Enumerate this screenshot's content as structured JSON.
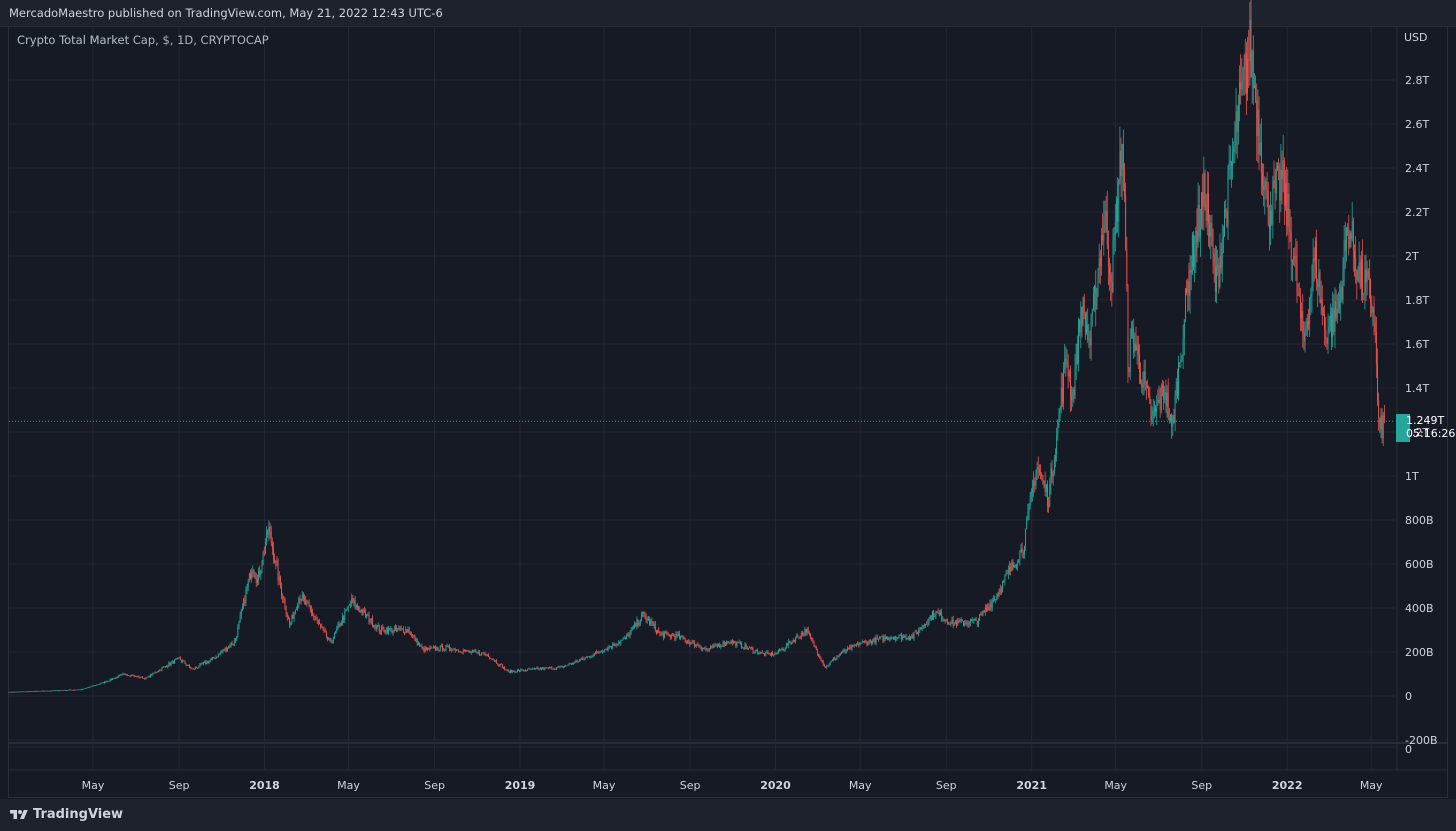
{
  "header": {
    "published_text": "MercadoMaestro published on TradingView.com, May 21, 2022 12:43 UTC-6"
  },
  "legend": {
    "symbol_overlay": "Crypto Total Market",
    "description": "Crypto Total Market Cap, $, 1D, CRYPTOCAP"
  },
  "price_tag": {
    "value": "1.249T",
    "countdown": "05:16:26"
  },
  "footer": {
    "brand": "TradingView"
  },
  "colors": {
    "background": "#161a25",
    "up": "#26a69a",
    "down": "#ef5350",
    "grid": "#242733"
  },
  "chart_data": {
    "type": "candlestick",
    "title": "Crypto Total Market Cap, $, 1D, CRYPTOCAP",
    "currency_label": "USD",
    "last_price": 1.249,
    "ylim": [
      -0.2,
      3.0
    ],
    "y_tick_values": [
      -0.2,
      0,
      0.2,
      0.4,
      0.6,
      0.8,
      1.0,
      1.2,
      1.4,
      1.6,
      1.8,
      2.0,
      2.2,
      2.4,
      2.6,
      2.8
    ],
    "y_tick_labels": [
      "-200B",
      "0",
      "200B",
      "400B",
      "600B",
      "800B",
      "1T",
      "1.2T",
      "1.4T",
      "1.6T",
      "1.8T",
      "2T",
      "2.2T",
      "2.4T",
      "2.6T",
      "2.8T"
    ],
    "lower_pane_label": "0",
    "x_range": [
      "2017-01",
      "2022-06"
    ],
    "x_ticks": [
      {
        "label": "May",
        "date": "2017-05",
        "bold": false
      },
      {
        "label": "Sep",
        "date": "2017-09",
        "bold": false
      },
      {
        "label": "2018",
        "date": "2018-01",
        "bold": true
      },
      {
        "label": "May",
        "date": "2018-05",
        "bold": false
      },
      {
        "label": "Sep",
        "date": "2018-09",
        "bold": false
      },
      {
        "label": "2019",
        "date": "2019-01",
        "bold": true
      },
      {
        "label": "May",
        "date": "2019-05",
        "bold": false
      },
      {
        "label": "Sep",
        "date": "2019-09",
        "bold": false
      },
      {
        "label": "2020",
        "date": "2020-01",
        "bold": true
      },
      {
        "label": "May",
        "date": "2020-05",
        "bold": false
      },
      {
        "label": "Sep",
        "date": "2020-09",
        "bold": false
      },
      {
        "label": "2021",
        "date": "2021-01",
        "bold": true
      },
      {
        "label": "May",
        "date": "2021-05",
        "bold": false
      },
      {
        "label": "Sep",
        "date": "2021-09",
        "bold": false
      },
      {
        "label": "2022",
        "date": "2022-01",
        "bold": true
      },
      {
        "label": "May",
        "date": "2022-05",
        "bold": false
      }
    ],
    "series": [
      {
        "name": "Crypto Total Market Cap (T USD, approx. daily closes sampled)",
        "anchors": [
          [
            "2017-01-01",
            0.018
          ],
          [
            "2017-03-01",
            0.024
          ],
          [
            "2017-04-15",
            0.03
          ],
          [
            "2017-05-15",
            0.06
          ],
          [
            "2017-06-15",
            0.1
          ],
          [
            "2017-07-15",
            0.08
          ],
          [
            "2017-08-15",
            0.14
          ],
          [
            "2017-09-01",
            0.17
          ],
          [
            "2017-09-20",
            0.12
          ],
          [
            "2017-10-20",
            0.17
          ],
          [
            "2017-11-20",
            0.25
          ],
          [
            "2017-12-15",
            0.6
          ],
          [
            "2017-12-22",
            0.52
          ],
          [
            "2018-01-07",
            0.76
          ],
          [
            "2018-01-20",
            0.55
          ],
          [
            "2018-02-06",
            0.32
          ],
          [
            "2018-02-20",
            0.46
          ],
          [
            "2018-03-15",
            0.35
          ],
          [
            "2018-04-05",
            0.24
          ],
          [
            "2018-05-05",
            0.43
          ],
          [
            "2018-06-15",
            0.3
          ],
          [
            "2018-07-25",
            0.3
          ],
          [
            "2018-08-15",
            0.21
          ],
          [
            "2018-09-20",
            0.22
          ],
          [
            "2018-10-20",
            0.2
          ],
          [
            "2018-11-15",
            0.19
          ],
          [
            "2018-12-15",
            0.11
          ],
          [
            "2019-01-15",
            0.12
          ],
          [
            "2019-03-01",
            0.13
          ],
          [
            "2019-04-10",
            0.18
          ],
          [
            "2019-06-01",
            0.26
          ],
          [
            "2019-06-26",
            0.37
          ],
          [
            "2019-07-20",
            0.28
          ],
          [
            "2019-08-15",
            0.27
          ],
          [
            "2019-09-25",
            0.21
          ],
          [
            "2019-10-28",
            0.25
          ],
          [
            "2019-12-15",
            0.19
          ],
          [
            "2020-01-01",
            0.19
          ],
          [
            "2020-02-14",
            0.3
          ],
          [
            "2020-03-12",
            0.13
          ],
          [
            "2020-04-01",
            0.19
          ],
          [
            "2020-05-01",
            0.24
          ],
          [
            "2020-06-15",
            0.27
          ],
          [
            "2020-07-15",
            0.27
          ],
          [
            "2020-08-15",
            0.38
          ],
          [
            "2020-09-10",
            0.33
          ],
          [
            "2020-10-15",
            0.34
          ],
          [
            "2020-11-10",
            0.45
          ],
          [
            "2020-12-01",
            0.57
          ],
          [
            "2020-12-20",
            0.68
          ],
          [
            "2021-01-08",
            1.05
          ],
          [
            "2021-01-25",
            0.9
          ],
          [
            "2021-02-20",
            1.55
          ],
          [
            "2021-02-28",
            1.35
          ],
          [
            "2021-03-13",
            1.78
          ],
          [
            "2021-03-25",
            1.6
          ],
          [
            "2021-04-15",
            2.2
          ],
          [
            "2021-04-25",
            1.9
          ],
          [
            "2021-05-11",
            2.55
          ],
          [
            "2021-05-19",
            1.5
          ],
          [
            "2021-05-25",
            1.65
          ],
          [
            "2021-06-22",
            1.25
          ],
          [
            "2021-07-10",
            1.4
          ],
          [
            "2021-07-20",
            1.2
          ],
          [
            "2021-08-15",
            1.95
          ],
          [
            "2021-09-06",
            2.3
          ],
          [
            "2021-09-21",
            1.85
          ],
          [
            "2021-10-21",
            2.6
          ],
          [
            "2021-11-09",
            2.95
          ],
          [
            "2021-11-26",
            2.45
          ],
          [
            "2021-12-04",
            2.2
          ],
          [
            "2021-12-25",
            2.35
          ],
          [
            "2022-01-10",
            2.0
          ],
          [
            "2022-01-24",
            1.6
          ],
          [
            "2022-02-10",
            2.0
          ],
          [
            "2022-02-24",
            1.65
          ],
          [
            "2022-03-15",
            1.75
          ],
          [
            "2022-03-29",
            2.15
          ],
          [
            "2022-04-15",
            1.9
          ],
          [
            "2022-04-26",
            1.85
          ],
          [
            "2022-05-05",
            1.75
          ],
          [
            "2022-05-12",
            1.2
          ],
          [
            "2022-05-21",
            1.249
          ]
        ]
      }
    ]
  }
}
